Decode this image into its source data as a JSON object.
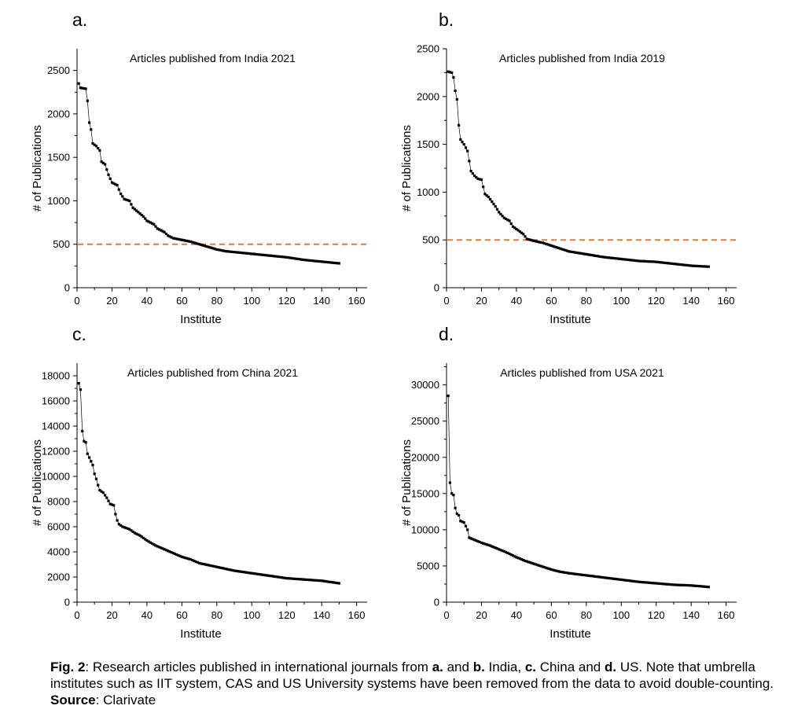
{
  "caption": {
    "fig_label": "Fig. 2",
    "text_1": ": Research articles published in international journals from ",
    "label_a": "a.",
    "text_2": " and ",
    "label_b": "b.",
    "text_3": " India, ",
    "label_c": "c.",
    "text_4": " China and ",
    "label_d": "d.",
    "text_5": " US. Note that umbrella institutes such as IIT system, CAS and US University systems have been removed from the data to avoid double-counting. ",
    "source_label": "Source",
    "source_text": ": Clarivate"
  },
  "style": {
    "marker_color": "#000000",
    "line_color": "#000000",
    "threshold_color": "#e07b39"
  },
  "chart_data": [
    {
      "panel": "a.",
      "type": "line",
      "title": "Articles published from India 2021",
      "xlabel": "Institute",
      "ylabel": "# of Publications",
      "xlim": [
        0,
        166
      ],
      "ylim": [
        0,
        2750
      ],
      "xticks": [
        0,
        20,
        40,
        60,
        80,
        100,
        120,
        140,
        160
      ],
      "yticks": [
        0,
        500,
        1000,
        1500,
        2000,
        2500
      ],
      "threshold": 500,
      "x_range": [
        1,
        150
      ],
      "anchors": [
        [
          1,
          2350
        ],
        [
          2,
          2300
        ],
        [
          5,
          2290
        ],
        [
          6,
          2150
        ],
        [
          7,
          1900
        ],
        [
          8,
          1820
        ],
        [
          9,
          1660
        ],
        [
          11,
          1630
        ],
        [
          13,
          1580
        ],
        [
          14,
          1450
        ],
        [
          16,
          1420
        ],
        [
          18,
          1300
        ],
        [
          20,
          1210
        ],
        [
          23,
          1180
        ],
        [
          25,
          1080
        ],
        [
          27,
          1020
        ],
        [
          30,
          1000
        ],
        [
          32,
          920
        ],
        [
          35,
          870
        ],
        [
          38,
          820
        ],
        [
          40,
          770
        ],
        [
          44,
          730
        ],
        [
          46,
          680
        ],
        [
          50,
          640
        ],
        [
          52,
          600
        ],
        [
          55,
          570
        ],
        [
          60,
          550
        ],
        [
          65,
          530
        ],
        [
          70,
          500
        ],
        [
          75,
          470
        ],
        [
          80,
          440
        ],
        [
          85,
          420
        ],
        [
          90,
          410
        ],
        [
          100,
          390
        ],
        [
          110,
          370
        ],
        [
          120,
          350
        ],
        [
          130,
          320
        ],
        [
          140,
          300
        ],
        [
          150,
          280
        ]
      ]
    },
    {
      "panel": "b.",
      "type": "line",
      "title": "Articles published from India 2019",
      "xlabel": "Institute",
      "ylabel": "# of Publications",
      "xlim": [
        0,
        166
      ],
      "ylim": [
        0,
        2500
      ],
      "xticks": [
        0,
        20,
        40,
        60,
        80,
        100,
        120,
        140,
        160
      ],
      "yticks": [
        0,
        500,
        1000,
        1500,
        2000,
        2500
      ],
      "threshold": 500,
      "x_range": [
        1,
        150
      ],
      "anchors": [
        [
          1,
          2260
        ],
        [
          3,
          2250
        ],
        [
          4,
          2200
        ],
        [
          5,
          2060
        ],
        [
          6,
          1970
        ],
        [
          7,
          1700
        ],
        [
          8,
          1550
        ],
        [
          10,
          1500
        ],
        [
          12,
          1430
        ],
        [
          14,
          1220
        ],
        [
          16,
          1170
        ],
        [
          18,
          1140
        ],
        [
          20,
          1130
        ],
        [
          22,
          980
        ],
        [
          24,
          950
        ],
        [
          26,
          900
        ],
        [
          28,
          850
        ],
        [
          30,
          790
        ],
        [
          33,
          730
        ],
        [
          36,
          700
        ],
        [
          38,
          640
        ],
        [
          41,
          600
        ],
        [
          44,
          560
        ],
        [
          46,
          510
        ],
        [
          50,
          490
        ],
        [
          55,
          470
        ],
        [
          60,
          440
        ],
        [
          65,
          410
        ],
        [
          70,
          380
        ],
        [
          80,
          350
        ],
        [
          90,
          320
        ],
        [
          100,
          300
        ],
        [
          110,
          280
        ],
        [
          120,
          270
        ],
        [
          130,
          250
        ],
        [
          140,
          230
        ],
        [
          150,
          220
        ]
      ]
    },
    {
      "panel": "c.",
      "type": "line",
      "title": "Articles published from China 2021",
      "xlabel": "Institute",
      "ylabel": "# of Publications",
      "xlim": [
        0,
        166
      ],
      "ylim": [
        0,
        19000
      ],
      "xticks": [
        0,
        20,
        40,
        60,
        80,
        100,
        120,
        140,
        160
      ],
      "yticks": [
        0,
        2000,
        4000,
        6000,
        8000,
        10000,
        12000,
        14000,
        16000,
        18000
      ],
      "threshold": null,
      "x_range": [
        1,
        150
      ],
      "anchors": [
        [
          1,
          17400
        ],
        [
          2,
          16900
        ],
        [
          3,
          13600
        ],
        [
          4,
          12800
        ],
        [
          5,
          12700
        ],
        [
          6,
          11800
        ],
        [
          7,
          11500
        ],
        [
          8,
          11200
        ],
        [
          9,
          10900
        ],
        [
          10,
          10200
        ],
        [
          11,
          9800
        ],
        [
          12,
          9300
        ],
        [
          13,
          8900
        ],
        [
          15,
          8700
        ],
        [
          17,
          8300
        ],
        [
          19,
          7800
        ],
        [
          21,
          7700
        ],
        [
          22,
          7000
        ],
        [
          23,
          6500
        ],
        [
          24,
          6200
        ],
        [
          26,
          6000
        ],
        [
          30,
          5800
        ],
        [
          33,
          5500
        ],
        [
          36,
          5300
        ],
        [
          40,
          4900
        ],
        [
          45,
          4500
        ],
        [
          50,
          4200
        ],
        [
          55,
          3900
        ],
        [
          60,
          3600
        ],
        [
          65,
          3400
        ],
        [
          70,
          3100
        ],
        [
          80,
          2800
        ],
        [
          90,
          2500
        ],
        [
          100,
          2300
        ],
        [
          110,
          2100
        ],
        [
          120,
          1900
        ],
        [
          130,
          1800
        ],
        [
          140,
          1700
        ],
        [
          150,
          1500
        ]
      ]
    },
    {
      "panel": "d.",
      "type": "line",
      "title": "Articles published from USA 2021",
      "xlabel": "Institute",
      "ylabel": "# of Publications",
      "xlim": [
        0,
        166
      ],
      "ylim": [
        0,
        33000
      ],
      "xticks": [
        0,
        20,
        40,
        60,
        80,
        100,
        120,
        140,
        160
      ],
      "yticks": [
        0,
        5000,
        10000,
        15000,
        20000,
        25000,
        30000
      ],
      "threshold": null,
      "x_range": [
        1,
        150
      ],
      "anchors": [
        [
          1,
          28500
        ],
        [
          2,
          16500
        ],
        [
          3,
          15000
        ],
        [
          4,
          14800
        ],
        [
          5,
          13000
        ],
        [
          6,
          12200
        ],
        [
          7,
          12000
        ],
        [
          8,
          11200
        ],
        [
          10,
          11000
        ],
        [
          11,
          10500
        ],
        [
          12,
          10000
        ],
        [
          13,
          8900
        ],
        [
          15,
          8700
        ],
        [
          18,
          8400
        ],
        [
          20,
          8200
        ],
        [
          25,
          7800
        ],
        [
          30,
          7300
        ],
        [
          35,
          6800
        ],
        [
          40,
          6200
        ],
        [
          45,
          5700
        ],
        [
          50,
          5300
        ],
        [
          55,
          4900
        ],
        [
          60,
          4500
        ],
        [
          65,
          4200
        ],
        [
          70,
          4000
        ],
        [
          80,
          3700
        ],
        [
          90,
          3400
        ],
        [
          100,
          3100
        ],
        [
          110,
          2800
        ],
        [
          120,
          2600
        ],
        [
          130,
          2400
        ],
        [
          140,
          2300
        ],
        [
          150,
          2100
        ]
      ]
    }
  ]
}
